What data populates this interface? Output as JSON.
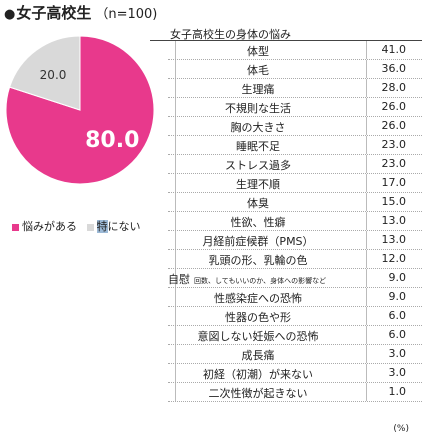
{
  "header": {
    "bullet": "●",
    "title": "女子高校生",
    "n_label": "（n=100)"
  },
  "colors": {
    "pink": "#e8398c",
    "gray": "#d9d9d9"
  },
  "chart_data": [
    {
      "type": "pie",
      "slices": [
        {
          "name": "悩みがある",
          "value": 80.0,
          "color": "#e8398c"
        },
        {
          "name": "特にない",
          "value": 20.0,
          "color": "#d9d9d9"
        }
      ],
      "labels": [
        "80.0",
        "20.0"
      ],
      "legend": "bottom-left"
    },
    {
      "type": "table",
      "title": "女子高校生の身体の悩み",
      "unit": "(%)",
      "rows": [
        {
          "label": "体型",
          "value": "41.0"
        },
        {
          "label": "体毛",
          "value": "36.0"
        },
        {
          "label": "生理痛",
          "value": "28.0"
        },
        {
          "label": "不規則な生活",
          "value": "26.0"
        },
        {
          "label": "胸の大きさ",
          "value": "26.0"
        },
        {
          "label": "睡眠不足",
          "value": "23.0"
        },
        {
          "label": "ストレス過多",
          "value": "23.0"
        },
        {
          "label": "生理不順",
          "value": "17.0"
        },
        {
          "label": "体臭",
          "value": "15.0"
        },
        {
          "label": "性欲、性癖",
          "value": "13.0"
        },
        {
          "label": "月経前症候群（PMS）",
          "value": "13.0"
        },
        {
          "label": "乳頭の形、乳輪の色",
          "value": "12.0"
        },
        {
          "label": "自慰",
          "sub": "回数、してもいいのか、身体への影響など",
          "value": "9.0"
        },
        {
          "label": "性感染症への恐怖",
          "value": "9.0"
        },
        {
          "label": "性器の色や形",
          "value": "6.0"
        },
        {
          "label": "意図しない妊娠への恐怖",
          "value": "6.0"
        },
        {
          "label": "成長痛",
          "value": "3.0"
        },
        {
          "label": "初経（初潮）が来ない",
          "value": "3.0"
        },
        {
          "label": "二次性徴が起きない",
          "value": "1.0"
        }
      ]
    }
  ]
}
